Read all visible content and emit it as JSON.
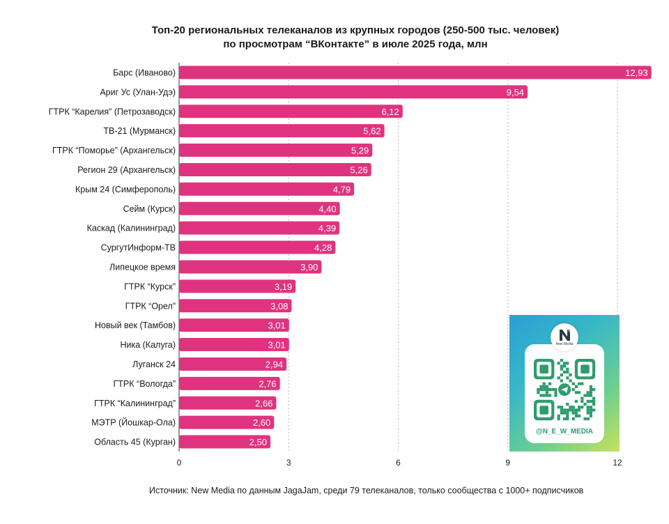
{
  "chart_data": {
    "type": "bar",
    "orientation": "horizontal",
    "title": "Топ-20 региональных телеканалов из крупных городов (250-500 тыс. человек)",
    "subtitle": "по просмотрам “ВКонтакте” в июле 2025 года, млн",
    "categories": [
      "Барс (Иваново)",
      "Ариг Ус (Улан-Удэ)",
      "ГТРК “Карелия” (Петрозаводск)",
      "ТВ-21 (Мурманск)",
      "ГТРК “Поморье” (Архангельск)",
      "Регион 29 (Архангельск)",
      "Крым 24 (Симферополь)",
      "Сейм (Курск)",
      "Каскад (Калининград)",
      "СургутИнформ-ТВ",
      "Липецкое время",
      "ГТРК “Курск”",
      "ГТРК “Орел”",
      "Новый век (Тамбов)",
      "Ника (Калуга)",
      "Луганск 24",
      "ГТРК “Вологда”",
      "ГТРК “Калининград”",
      "МЭТР (Йошкар-Ола)",
      "Область 45 (Курган)"
    ],
    "values": [
      12.93,
      9.54,
      6.12,
      5.62,
      5.29,
      5.26,
      4.79,
      4.4,
      4.39,
      4.28,
      3.9,
      3.19,
      3.08,
      3.01,
      3.01,
      2.94,
      2.76,
      2.66,
      2.6,
      2.5
    ],
    "value_labels": [
      "12,93",
      "9,54",
      "6,12",
      "5,62",
      "5,29",
      "5,26",
      "4,79",
      "4,40",
      "4,39",
      "4,28",
      "3,90",
      "3,19",
      "3,08",
      "3,01",
      "3,01",
      "2,94",
      "2,76",
      "2,66",
      "2,60",
      "2,50"
    ],
    "xlim": [
      0,
      12
    ],
    "xticks": [
      0,
      3,
      6,
      9,
      12
    ],
    "xtick_labels": [
      "0",
      "3",
      "6",
      "9",
      "12"
    ],
    "grid": "vertical dotted",
    "bar_color": "#e0337f",
    "source": "Источник: New Media по данным JagaJam, среди 79 телеканалов, только сообщества с 1000+ подписчиков"
  },
  "qr_card": {
    "logo_text": "New Media",
    "handle": "@N_E_W_MEDIA",
    "gradient_colors": [
      "#2a9fd6",
      "#6dcf8f",
      "#c8e25a"
    ],
    "qr_color": "#2f9c6e",
    "icon": "telegram-icon"
  }
}
